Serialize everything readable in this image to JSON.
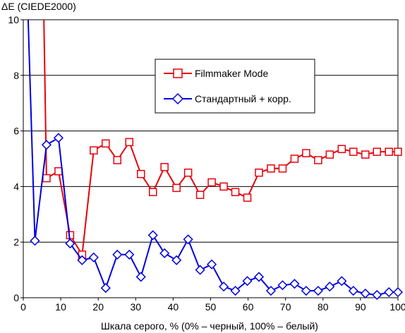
{
  "chart_data": {
    "type": "line",
    "title": "",
    "ylabel": "ΔE (CIEDE2000)",
    "xlabel": "Шкала серого, % (0% – черный, 100% – белый)",
    "xlim": [
      0,
      100
    ],
    "ylim": [
      0,
      10
    ],
    "xticks": [
      0,
      10,
      20,
      30,
      40,
      50,
      60,
      70,
      80,
      90,
      100
    ],
    "yticks": [
      0,
      2,
      4,
      6,
      8,
      10
    ],
    "grid": "horizontal",
    "legend_position": "upper-center",
    "series": [
      {
        "name": "Filmmaker Mode",
        "color": "#e8000b",
        "marker": "square",
        "x": [
          5.5,
          6.2,
          9.4,
          12.5,
          15.7,
          18.8,
          22.0,
          25.1,
          28.3,
          31.4,
          34.6,
          37.7,
          40.9,
          44.0,
          47.2,
          50.3,
          53.5,
          56.6,
          59.8,
          62.9,
          66.1,
          69.2,
          72.4,
          75.5,
          78.7,
          81.8,
          85.0,
          88.1,
          91.3,
          94.4,
          97.6,
          100.0
        ],
        "y": [
          10.0,
          4.3,
          4.55,
          2.25,
          1.55,
          5.3,
          5.55,
          4.95,
          5.6,
          4.45,
          3.8,
          4.7,
          3.95,
          4.5,
          3.7,
          4.15,
          4.0,
          3.8,
          3.6,
          4.5,
          4.65,
          4.65,
          5.0,
          5.2,
          4.95,
          5.15,
          5.35,
          5.25,
          5.15,
          5.25,
          5.25,
          5.25
        ]
      },
      {
        "name": "Стандартный + корр.",
        "color": "#0000e0",
        "marker": "diamond",
        "x": [
          1.3,
          3.1,
          6.2,
          9.4,
          12.5,
          15.7,
          18.8,
          22.0,
          25.1,
          28.3,
          31.4,
          34.6,
          37.7,
          40.9,
          44.0,
          47.2,
          50.3,
          53.5,
          56.6,
          59.8,
          62.9,
          66.1,
          69.2,
          72.4,
          75.5,
          78.7,
          81.8,
          85.0,
          88.1,
          91.3,
          94.4,
          97.6,
          100.0
        ],
        "y": [
          10.0,
          2.05,
          5.5,
          5.75,
          1.95,
          1.35,
          1.45,
          0.35,
          1.55,
          1.55,
          0.75,
          2.25,
          1.6,
          1.35,
          2.1,
          1.0,
          1.2,
          0.4,
          0.25,
          0.6,
          0.75,
          0.25,
          0.45,
          0.5,
          0.25,
          0.25,
          0.4,
          0.6,
          0.25,
          0.15,
          0.1,
          0.2,
          0.2
        ]
      }
    ]
  }
}
